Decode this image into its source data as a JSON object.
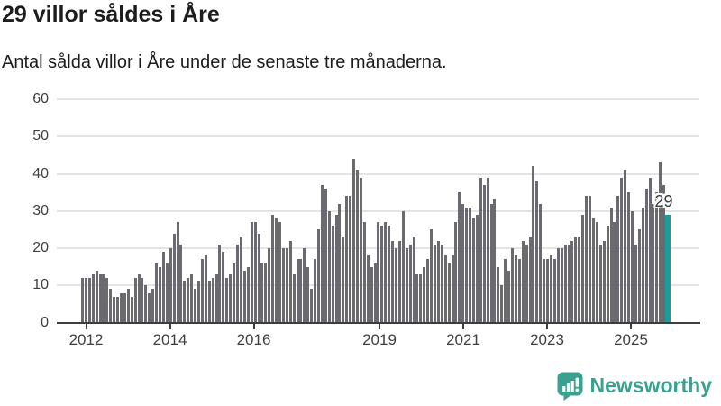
{
  "header": {
    "title": "29 villor såldes i Åre",
    "subtitle": "Antal sålda villor i Åre under de senaste tre månaderna."
  },
  "chart_data": {
    "type": "bar",
    "title": "29 villor såldes i Åre",
    "subtitle": "Antal sålda villor i Åre under de senaste tre månaderna.",
    "x_frequency": "monthly",
    "x_start": "2012-01",
    "x_end": "2025-11",
    "values": [
      12,
      12,
      12,
      13,
      14,
      13,
      13,
      12,
      9,
      7,
      7,
      8,
      8,
      9,
      7,
      12,
      13,
      12,
      10,
      8,
      9,
      16,
      15,
      19,
      16,
      20,
      24,
      27,
      21,
      11,
      12,
      13,
      9,
      11,
      17,
      18,
      11,
      12,
      13,
      21,
      19,
      12,
      13,
      16,
      21,
      23,
      14,
      15,
      27,
      27,
      24,
      16,
      16,
      20,
      29,
      28,
      27,
      20,
      20,
      22,
      13,
      17,
      17,
      20,
      15,
      9,
      17,
      25,
      37,
      36,
      30,
      26,
      29,
      32,
      23,
      34,
      34,
      44,
      41,
      39,
      27,
      18,
      15,
      16,
      27,
      26,
      27,
      26,
      22,
      20,
      22,
      30,
      20,
      21,
      23,
      13,
      13,
      15,
      17,
      25,
      21,
      22,
      21,
      18,
      16,
      18,
      27,
      35,
      32,
      31,
      31,
      28,
      29,
      39,
      37,
      39,
      32,
      33,
      15,
      10,
      17,
      14,
      20,
      18,
      17,
      22,
      21,
      23,
      42,
      38,
      32,
      17,
      17,
      18,
      17,
      20,
      20,
      21,
      21,
      22,
      23,
      23,
      29,
      34,
      34,
      28,
      27,
      21,
      22,
      26,
      31,
      27,
      34,
      39,
      41,
      35,
      30,
      21,
      25,
      31,
      36,
      39,
      32,
      35,
      43,
      37,
      29
    ],
    "highlighted_last_value": 29,
    "annotation_label": "29",
    "y_ticks": [
      0,
      10,
      20,
      30,
      40,
      50,
      60
    ],
    "ylim": [
      0,
      60
    ],
    "x_tick_labels": [
      "2012",
      "2014",
      "2016",
      "2019",
      "2021",
      "2023",
      "2025"
    ],
    "x_tick_start_year": 2012,
    "grid": "horizontal",
    "legend": "none",
    "colors": {
      "bar": "#6a6a70",
      "highlight": "#1b9d9d",
      "axis_text": "#404040",
      "gridline": "#e4e4e4"
    }
  },
  "footer": {
    "brand": "Newsworthy",
    "brand_color": "#3aa18f",
    "logo_icon": "newsworthy-chart-bubble-icon"
  }
}
